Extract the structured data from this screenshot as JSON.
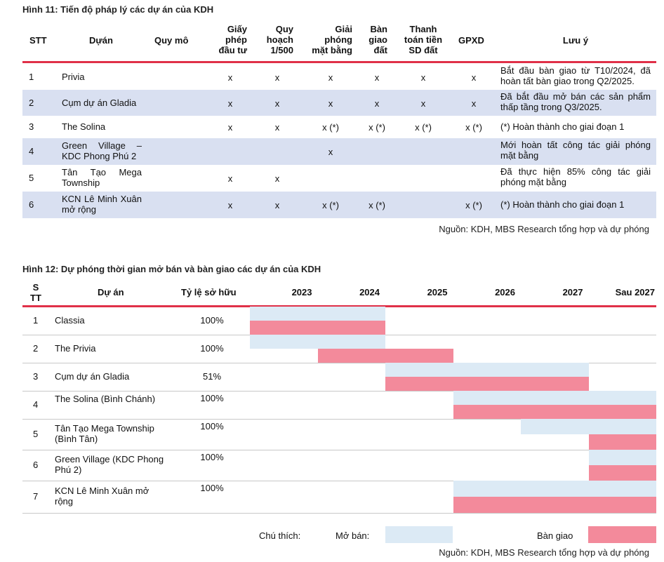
{
  "figure11": {
    "title": "Hình 11: Tiến độ pháp lý các dự án của KDH",
    "headers": {
      "stt": "STT",
      "du_an": "Dựán",
      "quy_mo": "Quy mô",
      "giay_phep": [
        "Giấy",
        "phép",
        "đầu tư"
      ],
      "quy_hoach": [
        "Quy",
        "hoạch",
        "1/500"
      ],
      "giai_phong": [
        "Giải",
        "phóng",
        "mặt bằng"
      ],
      "ban_giao": [
        "Bàn",
        "giao",
        "đất"
      ],
      "thanh_toan": [
        "Thanh",
        "toán tiền",
        "SD đất"
      ],
      "gpxd": "GPXD",
      "luu_y": "Lưu ý"
    },
    "rows": [
      {
        "stt": "1",
        "name": "Privia",
        "quy_mo": "",
        "giay_phep": "x",
        "quy_hoach": "x",
        "giai_phong": "x",
        "ban_giao": "x",
        "thanh_toan": "x",
        "gpxd": "x",
        "note": "Bắt đầu bàn giao từ T10/2024, đã hoàn tất bàn giao trong Q2/2025."
      },
      {
        "stt": "2",
        "name": "Cụm dự án Gladia",
        "quy_mo": "",
        "giay_phep": "x",
        "quy_hoach": "x",
        "giai_phong": "x",
        "ban_giao": "x",
        "thanh_toan": "x",
        "gpxd": "x",
        "note": "Đã bắt đầu mở bán các sản phẩm thấp tầng trong Q3/2025."
      },
      {
        "stt": "3",
        "name": "The Solina",
        "quy_mo": "",
        "giay_phep": "x",
        "quy_hoach": "x",
        "giai_phong": "x (*)",
        "ban_giao": "x (*)",
        "thanh_toan": "x (*)",
        "gpxd": "x (*)",
        "note": "(*) Hoàn thành cho giai đoạn 1"
      },
      {
        "stt": "4",
        "name": "Green Village – KDC Phong Phú 2",
        "quy_mo": "",
        "giay_phep": "",
        "quy_hoach": "",
        "giai_phong": "x",
        "ban_giao": "",
        "thanh_toan": "",
        "gpxd": "",
        "note": "Mới hoàn tất công tác giải phóng mặt bằng"
      },
      {
        "stt": "5",
        "name": "Tân Tạo Mega Township",
        "quy_mo": "",
        "giay_phep": "x",
        "quy_hoach": "x",
        "giai_phong": "",
        "ban_giao": "",
        "thanh_toan": "",
        "gpxd": "",
        "note": "Đã thực hiện 85% công tác giải phóng mặt bằng"
      },
      {
        "stt": "6",
        "name": "KCN Lê Minh Xuân mở rộng",
        "quy_mo": "",
        "giay_phep": "x",
        "quy_hoach": "x",
        "giai_phong": "x (*)",
        "ban_giao": "x (*)",
        "thanh_toan": "",
        "gpxd": "x (*)",
        "note": "(*) Hoàn thành cho giai đoạn 1"
      }
    ],
    "source": "Nguồn: KDH, MBS Research tổng hợp và dự phóng"
  },
  "figure12": {
    "title": "Hình 12: Dự phóng thời gian mở bán và bàn giao các dự án của KDH",
    "headers": {
      "stt": [
        "S",
        "TT"
      ],
      "du_an": "Dự án",
      "ty_le": "Tỷ lệ sở hữu"
    },
    "years": [
      "2023",
      "2024",
      "2025",
      "2026",
      "2027",
      "Sau 2027"
    ],
    "legend": {
      "caption": "Chú thích:",
      "open_label": "Mở bán:",
      "handover_label": "Bàn giao"
    },
    "colors": {
      "open": "#dceaf5",
      "handover": "#f38a9b",
      "accent": "#e03048",
      "band": "#d9e0f1"
    },
    "source": "Nguồn: KDH, MBS Research tổng hợp và dự phóng"
  },
  "chart_data": {
    "type": "gantt",
    "title": "Hình 12: Dự phóng thời gian mở bán và bàn giao các dự án của KDH",
    "periods": [
      "2023",
      "2024",
      "2025",
      "2026",
      "2027",
      "Sau 2027"
    ],
    "period_unit_note": "bars span in period-column units, start inclusive, end exclusive (0 = start of 2023 column)",
    "series": [
      {
        "name": "Mở bán",
        "color": "#dceaf5"
      },
      {
        "name": "Bàn giao",
        "color": "#f38a9b"
      }
    ],
    "rows": [
      {
        "stt": "1",
        "name": "Classia",
        "ownership": "100%",
        "open": [
          0,
          2
        ],
        "handover": [
          0,
          2
        ]
      },
      {
        "stt": "2",
        "name": "The Privia",
        "ownership": "100%",
        "open": [
          0,
          2
        ],
        "handover": [
          1,
          3
        ]
      },
      {
        "stt": "3",
        "name": "Cụm dự án Gladia",
        "ownership": "51%",
        "open": [
          2,
          5
        ],
        "handover": [
          2,
          5
        ]
      },
      {
        "stt": "4",
        "name": "The Solina (Bình Chánh)",
        "ownership": "100%",
        "open": [
          3,
          6
        ],
        "handover": [
          3,
          6
        ]
      },
      {
        "stt": "5",
        "name": "Tân Tạo Mega Township (Bình Tân)",
        "ownership": "100%",
        "open": [
          4,
          6
        ],
        "handover": [
          5,
          6
        ]
      },
      {
        "stt": "6",
        "name": "Green Village (KDC Phong Phú 2)",
        "ownership": "100%",
        "open": [
          5,
          6
        ],
        "handover": [
          5,
          6
        ]
      },
      {
        "stt": "7",
        "name": "KCN Lê Minh Xuân mở rộng",
        "ownership": "100%",
        "open": [
          3,
          6
        ],
        "handover": [
          3,
          6
        ]
      }
    ]
  }
}
